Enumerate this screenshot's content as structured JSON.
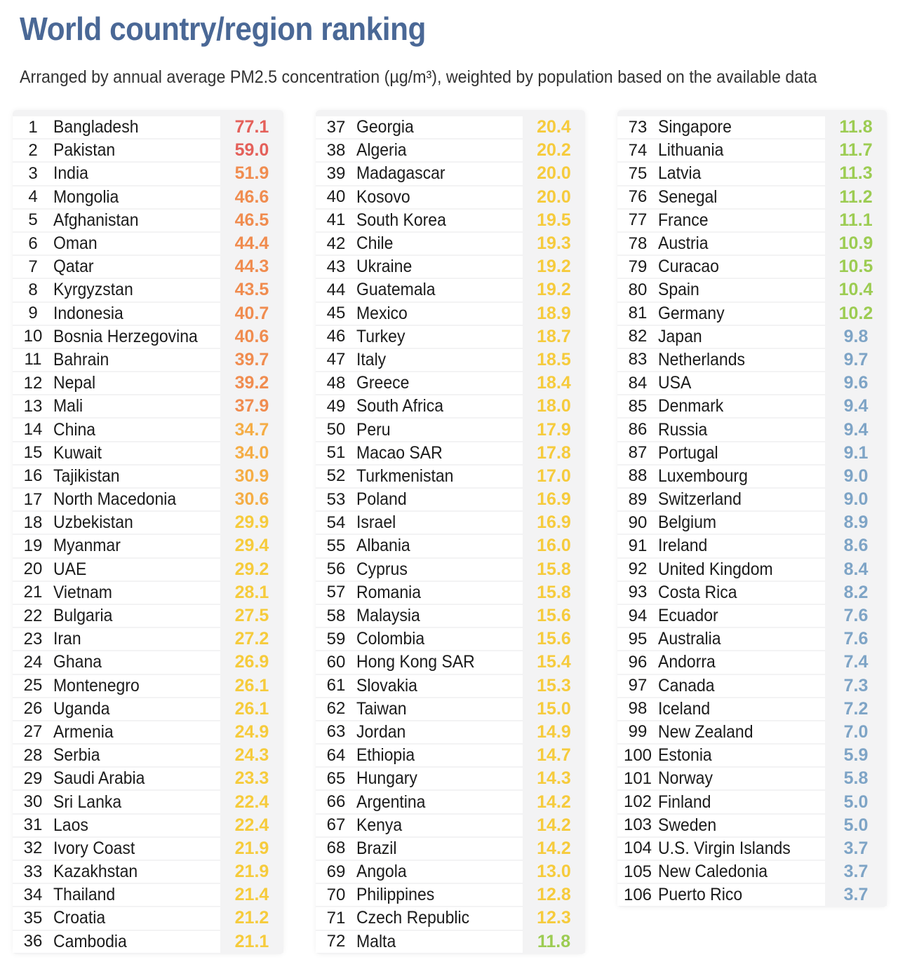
{
  "header": {
    "title": "World country/region ranking",
    "subtitle": "Arranged by annual average PM2.5 concentration (µg/m³), weighted by population based on the available data"
  },
  "colors": {
    "title": "#4a6896",
    "red": "#e4605a",
    "orange": "#f08c4f",
    "amber": "#f5ad45",
    "yellow": "#f6cb3c",
    "green": "#9ccc52",
    "blue": "#7ea4c6"
  },
  "ranking": [
    {
      "rank": "1",
      "country": "Bangladesh",
      "value": "77.1",
      "color": "#e4605a"
    },
    {
      "rank": "2",
      "country": "Pakistan",
      "value": "59.0",
      "color": "#e4605a"
    },
    {
      "rank": "3",
      "country": "India",
      "value": "51.9",
      "color": "#f08c4f"
    },
    {
      "rank": "4",
      "country": "Mongolia",
      "value": "46.6",
      "color": "#f08c4f"
    },
    {
      "rank": "5",
      "country": "Afghanistan",
      "value": "46.5",
      "color": "#f08c4f"
    },
    {
      "rank": "6",
      "country": "Oman",
      "value": "44.4",
      "color": "#f08c4f"
    },
    {
      "rank": "7",
      "country": "Qatar",
      "value": "44.3",
      "color": "#f08c4f"
    },
    {
      "rank": "8",
      "country": "Kyrgyzstan",
      "value": "43.5",
      "color": "#f08c4f"
    },
    {
      "rank": "9",
      "country": "Indonesia",
      "value": "40.7",
      "color": "#f08c4f"
    },
    {
      "rank": "10",
      "country": "Bosnia Herzegovina",
      "value": "40.6",
      "color": "#f08c4f"
    },
    {
      "rank": "11",
      "country": "Bahrain",
      "value": "39.7",
      "color": "#f08c4f"
    },
    {
      "rank": "12",
      "country": "Nepal",
      "value": "39.2",
      "color": "#f08c4f"
    },
    {
      "rank": "13",
      "country": "Mali",
      "value": "37.9",
      "color": "#f08c4f"
    },
    {
      "rank": "14",
      "country": "China",
      "value": "34.7",
      "color": "#f5ad45"
    },
    {
      "rank": "15",
      "country": "Kuwait",
      "value": "34.0",
      "color": "#f5ad45"
    },
    {
      "rank": "16",
      "country": "Tajikistan",
      "value": "30.9",
      "color": "#f5ad45"
    },
    {
      "rank": "17",
      "country": "North Macedonia",
      "value": "30.6",
      "color": "#f5ad45"
    },
    {
      "rank": "18",
      "country": "Uzbekistan",
      "value": "29.9",
      "color": "#f6cb3c"
    },
    {
      "rank": "19",
      "country": "Myanmar",
      "value": "29.4",
      "color": "#f6cb3c"
    },
    {
      "rank": "20",
      "country": "UAE",
      "value": "29.2",
      "color": "#f6cb3c"
    },
    {
      "rank": "21",
      "country": "Vietnam",
      "value": "28.1",
      "color": "#f6cb3c"
    },
    {
      "rank": "22",
      "country": "Bulgaria",
      "value": "27.5",
      "color": "#f6cb3c"
    },
    {
      "rank": "23",
      "country": "Iran",
      "value": "27.2",
      "color": "#f6cb3c"
    },
    {
      "rank": "24",
      "country": "Ghana",
      "value": "26.9",
      "color": "#f6cb3c"
    },
    {
      "rank": "25",
      "country": "Montenegro",
      "value": "26.1",
      "color": "#f6cb3c"
    },
    {
      "rank": "26",
      "country": "Uganda",
      "value": "26.1",
      "color": "#f6cb3c"
    },
    {
      "rank": "27",
      "country": "Armenia",
      "value": "24.9",
      "color": "#f6cb3c"
    },
    {
      "rank": "28",
      "country": "Serbia",
      "value": "24.3",
      "color": "#f6cb3c"
    },
    {
      "rank": "29",
      "country": "Saudi Arabia",
      "value": "23.3",
      "color": "#f6cb3c"
    },
    {
      "rank": "30",
      "country": "Sri Lanka",
      "value": "22.4",
      "color": "#f6cb3c"
    },
    {
      "rank": "31",
      "country": "Laos",
      "value": "22.4",
      "color": "#f6cb3c"
    },
    {
      "rank": "32",
      "country": "Ivory Coast",
      "value": "21.9",
      "color": "#f6cb3c"
    },
    {
      "rank": "33",
      "country": "Kazakhstan",
      "value": "21.9",
      "color": "#f6cb3c"
    },
    {
      "rank": "34",
      "country": "Thailand",
      "value": "21.4",
      "color": "#f6cb3c"
    },
    {
      "rank": "35",
      "country": "Croatia",
      "value": "21.2",
      "color": "#f6cb3c"
    },
    {
      "rank": "36",
      "country": "Cambodia",
      "value": "21.1",
      "color": "#f6cb3c"
    },
    {
      "rank": "37",
      "country": "Georgia",
      "value": "20.4",
      "color": "#f6cb3c"
    },
    {
      "rank": "38",
      "country": "Algeria",
      "value": "20.2",
      "color": "#f6cb3c"
    },
    {
      "rank": "39",
      "country": "Madagascar",
      "value": "20.0",
      "color": "#f6cb3c"
    },
    {
      "rank": "40",
      "country": "Kosovo",
      "value": "20.0",
      "color": "#f6cb3c"
    },
    {
      "rank": "41",
      "country": "South Korea",
      "value": "19.5",
      "color": "#f6cb3c"
    },
    {
      "rank": "42",
      "country": "Chile",
      "value": "19.3",
      "color": "#f6cb3c"
    },
    {
      "rank": "43",
      "country": "Ukraine",
      "value": "19.2",
      "color": "#f6cb3c"
    },
    {
      "rank": "44",
      "country": "Guatemala",
      "value": "19.2",
      "color": "#f6cb3c"
    },
    {
      "rank": "45",
      "country": "Mexico",
      "value": "18.9",
      "color": "#f6cb3c"
    },
    {
      "rank": "46",
      "country": "Turkey",
      "value": "18.7",
      "color": "#f6cb3c"
    },
    {
      "rank": "47",
      "country": "Italy",
      "value": "18.5",
      "color": "#f6cb3c"
    },
    {
      "rank": "48",
      "country": "Greece",
      "value": "18.4",
      "color": "#f6cb3c"
    },
    {
      "rank": "49",
      "country": "South Africa",
      "value": "18.0",
      "color": "#f6cb3c"
    },
    {
      "rank": "50",
      "country": "Peru",
      "value": "17.9",
      "color": "#f6cb3c"
    },
    {
      "rank": "51",
      "country": "Macao SAR",
      "value": "17.8",
      "color": "#f6cb3c"
    },
    {
      "rank": "52",
      "country": "Turkmenistan",
      "value": "17.0",
      "color": "#f6cb3c"
    },
    {
      "rank": "53",
      "country": "Poland",
      "value": "16.9",
      "color": "#f6cb3c"
    },
    {
      "rank": "54",
      "country": "Israel",
      "value": "16.9",
      "color": "#f6cb3c"
    },
    {
      "rank": "55",
      "country": "Albania",
      "value": "16.0",
      "color": "#f6cb3c"
    },
    {
      "rank": "56",
      "country": "Cyprus",
      "value": "15.8",
      "color": "#f6cb3c"
    },
    {
      "rank": "57",
      "country": "Romania",
      "value": "15.8",
      "color": "#f6cb3c"
    },
    {
      "rank": "58",
      "country": "Malaysia",
      "value": "15.6",
      "color": "#f6cb3c"
    },
    {
      "rank": "59",
      "country": "Colombia",
      "value": "15.6",
      "color": "#f6cb3c"
    },
    {
      "rank": "60",
      "country": "Hong Kong SAR",
      "value": "15.4",
      "color": "#f6cb3c"
    },
    {
      "rank": "61",
      "country": "Slovakia",
      "value": "15.3",
      "color": "#f6cb3c"
    },
    {
      "rank": "62",
      "country": "Taiwan",
      "value": "15.0",
      "color": "#f6cb3c"
    },
    {
      "rank": "63",
      "country": "Jordan",
      "value": "14.9",
      "color": "#f6cb3c"
    },
    {
      "rank": "64",
      "country": "Ethiopia",
      "value": "14.7",
      "color": "#f6cb3c"
    },
    {
      "rank": "65",
      "country": "Hungary",
      "value": "14.3",
      "color": "#f6cb3c"
    },
    {
      "rank": "66",
      "country": "Argentina",
      "value": "14.2",
      "color": "#f6cb3c"
    },
    {
      "rank": "67",
      "country": "Kenya",
      "value": "14.2",
      "color": "#f6cb3c"
    },
    {
      "rank": "68",
      "country": "Brazil",
      "value": "14.2",
      "color": "#f6cb3c"
    },
    {
      "rank": "69",
      "country": "Angola",
      "value": "13.0",
      "color": "#f6cb3c"
    },
    {
      "rank": "70",
      "country": "Philippines",
      "value": "12.8",
      "color": "#f6cb3c"
    },
    {
      "rank": "71",
      "country": "Czech Republic",
      "value": "12.3",
      "color": "#f6cb3c"
    },
    {
      "rank": "72",
      "country": "Malta",
      "value": "11.8",
      "color": "#9ccc52"
    },
    {
      "rank": "73",
      "country": "Singapore",
      "value": "11.8",
      "color": "#9ccc52"
    },
    {
      "rank": "74",
      "country": "Lithuania",
      "value": "11.7",
      "color": "#9ccc52"
    },
    {
      "rank": "75",
      "country": "Latvia",
      "value": "11.3",
      "color": "#9ccc52"
    },
    {
      "rank": "76",
      "country": "Senegal",
      "value": "11.2",
      "color": "#9ccc52"
    },
    {
      "rank": "77",
      "country": "France",
      "value": "11.1",
      "color": "#9ccc52"
    },
    {
      "rank": "78",
      "country": "Austria",
      "value": "10.9",
      "color": "#9ccc52"
    },
    {
      "rank": "79",
      "country": "Curacao",
      "value": "10.5",
      "color": "#9ccc52"
    },
    {
      "rank": "80",
      "country": "Spain",
      "value": "10.4",
      "color": "#9ccc52"
    },
    {
      "rank": "81",
      "country": "Germany",
      "value": "10.2",
      "color": "#9ccc52"
    },
    {
      "rank": "82",
      "country": "Japan",
      "value": "9.8",
      "color": "#7ea4c6"
    },
    {
      "rank": "83",
      "country": "Netherlands",
      "value": "9.7",
      "color": "#7ea4c6"
    },
    {
      "rank": "84",
      "country": "USA",
      "value": "9.6",
      "color": "#7ea4c6"
    },
    {
      "rank": "85",
      "country": "Denmark",
      "value": "9.4",
      "color": "#7ea4c6"
    },
    {
      "rank": "86",
      "country": "Russia",
      "value": "9.4",
      "color": "#7ea4c6"
    },
    {
      "rank": "87",
      "country": "Portugal",
      "value": "9.1",
      "color": "#7ea4c6"
    },
    {
      "rank": "88",
      "country": "Luxembourg",
      "value": "9.0",
      "color": "#7ea4c6"
    },
    {
      "rank": "89",
      "country": "Switzerland",
      "value": "9.0",
      "color": "#7ea4c6"
    },
    {
      "rank": "90",
      "country": "Belgium",
      "value": "8.9",
      "color": "#7ea4c6"
    },
    {
      "rank": "91",
      "country": "Ireland",
      "value": "8.6",
      "color": "#7ea4c6"
    },
    {
      "rank": "92",
      "country": "United Kingdom",
      "value": "8.4",
      "color": "#7ea4c6"
    },
    {
      "rank": "93",
      "country": "Costa Rica",
      "value": "8.2",
      "color": "#7ea4c6"
    },
    {
      "rank": "94",
      "country": "Ecuador",
      "value": "7.6",
      "color": "#7ea4c6"
    },
    {
      "rank": "95",
      "country": "Australia",
      "value": "7.6",
      "color": "#7ea4c6"
    },
    {
      "rank": "96",
      "country": "Andorra",
      "value": "7.4",
      "color": "#7ea4c6"
    },
    {
      "rank": "97",
      "country": "Canada",
      "value": "7.3",
      "color": "#7ea4c6"
    },
    {
      "rank": "98",
      "country": "Iceland",
      "value": "7.2",
      "color": "#7ea4c6"
    },
    {
      "rank": "99",
      "country": "New Zealand",
      "value": "7.0",
      "color": "#7ea4c6"
    },
    {
      "rank": "100",
      "country": "Estonia",
      "value": "5.9",
      "color": "#7ea4c6"
    },
    {
      "rank": "101",
      "country": "Norway",
      "value": "5.8",
      "color": "#7ea4c6"
    },
    {
      "rank": "102",
      "country": "Finland",
      "value": "5.0",
      "color": "#7ea4c6"
    },
    {
      "rank": "103",
      "country": "Sweden",
      "value": "5.0",
      "color": "#7ea4c6"
    },
    {
      "rank": "104",
      "country": "U.S. Virgin Islands",
      "value": "3.7",
      "color": "#7ea4c6"
    },
    {
      "rank": "105",
      "country": "New Caledonia",
      "value": "3.7",
      "color": "#7ea4c6"
    },
    {
      "rank": "106",
      "country": "Puerto Rico",
      "value": "3.7",
      "color": "#7ea4c6"
    }
  ]
}
